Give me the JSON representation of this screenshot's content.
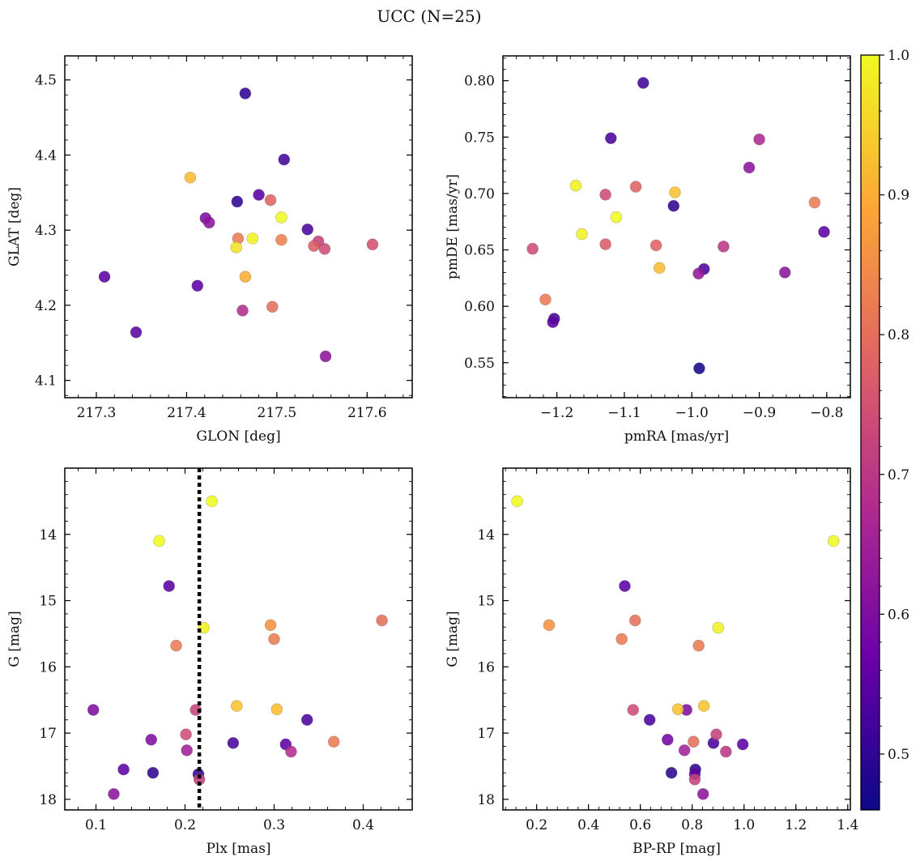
{
  "figure": {
    "title": "UCC (N=25)"
  },
  "colorbar": {
    "vmin": 0.46,
    "vmax": 1.0,
    "ticks": [
      "0.5",
      "0.6",
      "0.7",
      "0.8",
      "0.9",
      "1.0"
    ],
    "colormap": [
      "#0d0887",
      "#6a00a8",
      "#b12a90",
      "#e16462",
      "#fca636",
      "#f0f921"
    ]
  },
  "chart_data": [
    {
      "type": "scatter",
      "xlabel": "GLON [deg]",
      "ylabel": "GLAT [deg]",
      "xlim": [
        217.265,
        217.65
      ],
      "ylim": [
        4.077,
        4.532
      ],
      "xticks": [
        "217.3",
        "217.4",
        "217.5",
        "217.6"
      ],
      "yticks": [
        "4.1",
        "4.2",
        "4.3",
        "4.4",
        "4.5"
      ],
      "invert_y": false,
      "vline": null,
      "points": [
        {
          "x": 217.465,
          "y": 4.482,
          "c": 0.5
        },
        {
          "x": 217.508,
          "y": 4.394,
          "c": 0.52
        },
        {
          "x": 217.404,
          "y": 4.37,
          "c": 0.92
        },
        {
          "x": 217.48,
          "y": 4.347,
          "c": 0.55
        },
        {
          "x": 217.456,
          "y": 4.338,
          "c": 0.5
        },
        {
          "x": 217.493,
          "y": 4.34,
          "c": 0.78
        },
        {
          "x": 217.505,
          "y": 4.317,
          "c": 1.0
        },
        {
          "x": 217.421,
          "y": 4.316,
          "c": 0.6
        },
        {
          "x": 217.425,
          "y": 4.31,
          "c": 0.62
        },
        {
          "x": 217.534,
          "y": 4.301,
          "c": 0.53
        },
        {
          "x": 217.457,
          "y": 4.289,
          "c": 0.82
        },
        {
          "x": 217.473,
          "y": 4.289,
          "c": 0.99
        },
        {
          "x": 217.505,
          "y": 4.287,
          "c": 0.83
        },
        {
          "x": 217.546,
          "y": 4.285,
          "c": 0.72
        },
        {
          "x": 217.606,
          "y": 4.281,
          "c": 0.75
        },
        {
          "x": 217.541,
          "y": 4.279,
          "c": 0.77
        },
        {
          "x": 217.455,
          "y": 4.277,
          "c": 0.97
        },
        {
          "x": 217.553,
          "y": 4.275,
          "c": 0.74
        },
        {
          "x": 217.309,
          "y": 4.238,
          "c": 0.55
        },
        {
          "x": 217.465,
          "y": 4.238,
          "c": 0.9
        },
        {
          "x": 217.412,
          "y": 4.226,
          "c": 0.55
        },
        {
          "x": 217.495,
          "y": 4.198,
          "c": 0.8
        },
        {
          "x": 217.462,
          "y": 4.193,
          "c": 0.68
        },
        {
          "x": 217.344,
          "y": 4.164,
          "c": 0.55
        },
        {
          "x": 217.554,
          "y": 4.132,
          "c": 0.62
        }
      ]
    },
    {
      "type": "scatter",
      "xlabel": "pmRA [mas/yr]",
      "ylabel": "pmDE [mas/yr]",
      "xlim": [
        -1.28,
        -0.765
      ],
      "ylim": [
        0.519,
        0.822
      ],
      "xticks": [
        "−1.2",
        "−1.1",
        "−1.0",
        "−0.9",
        "−0.8"
      ],
      "yticks": [
        "0.55",
        "0.60",
        "0.65",
        "0.70",
        "0.75",
        "0.80"
      ],
      "invert_y": false,
      "vline": null,
      "points": [
        {
          "x": -1.072,
          "y": 0.798,
          "c": 0.52
        },
        {
          "x": -1.12,
          "y": 0.749,
          "c": 0.53
        },
        {
          "x": -0.9,
          "y": 0.748,
          "c": 0.67
        },
        {
          "x": -0.915,
          "y": 0.723,
          "c": 0.62
        },
        {
          "x": -1.172,
          "y": 0.707,
          "c": 0.99
        },
        {
          "x": -1.083,
          "y": 0.706,
          "c": 0.78
        },
        {
          "x": -1.025,
          "y": 0.701,
          "c": 0.93
        },
        {
          "x": -1.128,
          "y": 0.699,
          "c": 0.74
        },
        {
          "x": -0.818,
          "y": 0.692,
          "c": 0.82
        },
        {
          "x": -1.027,
          "y": 0.689,
          "c": 0.5
        },
        {
          "x": -1.112,
          "y": 0.679,
          "c": 1.0
        },
        {
          "x": -0.804,
          "y": 0.666,
          "c": 0.55
        },
        {
          "x": -1.163,
          "y": 0.664,
          "c": 0.99
        },
        {
          "x": -1.128,
          "y": 0.655,
          "c": 0.77
        },
        {
          "x": -1.053,
          "y": 0.654,
          "c": 0.78
        },
        {
          "x": -0.953,
          "y": 0.653,
          "c": 0.7
        },
        {
          "x": -1.236,
          "y": 0.651,
          "c": 0.74
        },
        {
          "x": -1.048,
          "y": 0.634,
          "c": 0.92
        },
        {
          "x": -0.982,
          "y": 0.633,
          "c": 0.53
        },
        {
          "x": -0.862,
          "y": 0.63,
          "c": 0.62
        },
        {
          "x": -0.99,
          "y": 0.629,
          "c": 0.63
        },
        {
          "x": -1.217,
          "y": 0.606,
          "c": 0.82
        },
        {
          "x": -1.204,
          "y": 0.589,
          "c": 0.52
        },
        {
          "x": -1.206,
          "y": 0.586,
          "c": 0.55
        },
        {
          "x": -0.989,
          "y": 0.545,
          "c": 0.47
        }
      ]
    },
    {
      "type": "scatter",
      "xlabel": "Plx [mas]",
      "ylabel": "G [mag]",
      "xlim": [
        0.065,
        0.455
      ],
      "ylim": [
        13.0,
        18.16
      ],
      "xticks": [
        "0.1",
        "0.2",
        "0.3",
        "0.4"
      ],
      "yticks": [
        "14",
        "15",
        "16",
        "17",
        "18"
      ],
      "invert_y": true,
      "vline": 0.216,
      "points": [
        {
          "x": 0.23,
          "y": 13.5,
          "c": 1.0
        },
        {
          "x": 0.171,
          "y": 14.1,
          "c": 1.0
        },
        {
          "x": 0.182,
          "y": 14.78,
          "c": 0.55
        },
        {
          "x": 0.421,
          "y": 15.3,
          "c": 0.8
        },
        {
          "x": 0.296,
          "y": 15.37,
          "c": 0.86
        },
        {
          "x": 0.221,
          "y": 15.41,
          "c": 0.99
        },
        {
          "x": 0.3,
          "y": 15.58,
          "c": 0.82
        },
        {
          "x": 0.19,
          "y": 15.68,
          "c": 0.82
        },
        {
          "x": 0.097,
          "y": 16.65,
          "c": 0.6
        },
        {
          "x": 0.212,
          "y": 16.65,
          "c": 0.72
        },
        {
          "x": 0.258,
          "y": 16.59,
          "c": 0.93
        },
        {
          "x": 0.303,
          "y": 16.64,
          "c": 0.92
        },
        {
          "x": 0.337,
          "y": 16.8,
          "c": 0.53
        },
        {
          "x": 0.201,
          "y": 17.02,
          "c": 0.74
        },
        {
          "x": 0.162,
          "y": 17.1,
          "c": 0.6
        },
        {
          "x": 0.254,
          "y": 17.15,
          "c": 0.53
        },
        {
          "x": 0.367,
          "y": 17.13,
          "c": 0.82
        },
        {
          "x": 0.313,
          "y": 17.17,
          "c": 0.55
        },
        {
          "x": 0.202,
          "y": 17.26,
          "c": 0.65
        },
        {
          "x": 0.319,
          "y": 17.28,
          "c": 0.68
        },
        {
          "x": 0.131,
          "y": 17.55,
          "c": 0.55
        },
        {
          "x": 0.164,
          "y": 17.6,
          "c": 0.5
        },
        {
          "x": 0.215,
          "y": 17.62,
          "c": 0.5
        },
        {
          "x": 0.216,
          "y": 17.7,
          "c": 0.72
        },
        {
          "x": 0.12,
          "y": 17.92,
          "c": 0.62
        }
      ]
    },
    {
      "type": "scatter",
      "xlabel": "BP-RP [mag]",
      "ylabel": "G [mag]",
      "xlim": [
        0.07,
        1.41
      ],
      "ylim": [
        13.0,
        18.16
      ],
      "xticks": [
        "0.2",
        "0.4",
        "0.6",
        "0.8",
        "1.0",
        "1.2",
        "1.4"
      ],
      "yticks": [
        "14",
        "15",
        "16",
        "17",
        "18"
      ],
      "invert_y": true,
      "vline": null,
      "points": [
        {
          "x": 0.125,
          "y": 13.5,
          "c": 1.0
        },
        {
          "x": 1.345,
          "y": 14.1,
          "c": 1.0
        },
        {
          "x": 0.54,
          "y": 14.78,
          "c": 0.55
        },
        {
          "x": 0.58,
          "y": 15.3,
          "c": 0.8
        },
        {
          "x": 0.248,
          "y": 15.37,
          "c": 0.86
        },
        {
          "x": 0.9,
          "y": 15.41,
          "c": 0.99
        },
        {
          "x": 0.528,
          "y": 15.58,
          "c": 0.82
        },
        {
          "x": 0.825,
          "y": 15.68,
          "c": 0.82
        },
        {
          "x": 0.572,
          "y": 16.65,
          "c": 0.74
        },
        {
          "x": 0.745,
          "y": 16.64,
          "c": 0.93
        },
        {
          "x": 0.778,
          "y": 16.65,
          "c": 0.6
        },
        {
          "x": 0.845,
          "y": 16.59,
          "c": 0.93
        },
        {
          "x": 0.636,
          "y": 16.8,
          "c": 0.53
        },
        {
          "x": 0.893,
          "y": 17.02,
          "c": 0.72
        },
        {
          "x": 0.705,
          "y": 17.1,
          "c": 0.58
        },
        {
          "x": 0.805,
          "y": 17.13,
          "c": 0.8
        },
        {
          "x": 0.882,
          "y": 17.15,
          "c": 0.53
        },
        {
          "x": 0.995,
          "y": 17.17,
          "c": 0.55
        },
        {
          "x": 0.77,
          "y": 17.26,
          "c": 0.65
        },
        {
          "x": 0.93,
          "y": 17.28,
          "c": 0.7
        },
        {
          "x": 0.812,
          "y": 17.55,
          "c": 0.5
        },
        {
          "x": 0.72,
          "y": 17.6,
          "c": 0.5
        },
        {
          "x": 0.81,
          "y": 17.62,
          "c": 0.55
        },
        {
          "x": 0.81,
          "y": 17.7,
          "c": 0.72
        },
        {
          "x": 0.842,
          "y": 17.92,
          "c": 0.62
        }
      ]
    }
  ]
}
